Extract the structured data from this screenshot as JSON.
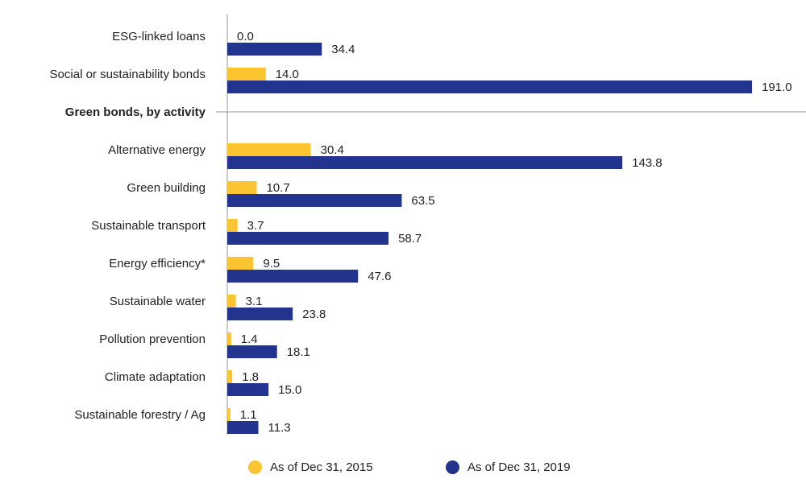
{
  "chart_data": {
    "type": "bar",
    "orientation": "horizontal",
    "categories": [
      "ESG-linked loans",
      "Social or sustainability bonds",
      "Green bonds, by activity",
      "Alternative energy",
      "Green building",
      "Sustainable transport",
      "Energy efficiency*",
      "Sustainable water",
      "Pollution prevention",
      "Climate adaptation",
      "Sustainable forestry / Ag"
    ],
    "section_header": "Green bonds, by activity",
    "series": [
      {
        "name": "As of Dec 31, 2015",
        "color": "#FBC531",
        "values": [
          0.0,
          14.0,
          null,
          30.4,
          10.7,
          3.7,
          9.5,
          3.1,
          1.4,
          1.8,
          1.1
        ],
        "labels": [
          "0.0",
          "14.0",
          "",
          "30.4",
          "10.7",
          "3.7",
          "9.5",
          "3.1",
          "1.4",
          "1.8",
          "1.1"
        ]
      },
      {
        "name": "As of Dec 31, 2019",
        "color": "#22348E",
        "values": [
          34.4,
          191.0,
          null,
          143.8,
          63.5,
          58.7,
          47.6,
          23.8,
          18.1,
          15.0,
          11.3
        ],
        "labels": [
          "34.4",
          "191.0",
          "",
          "143.8",
          "63.5",
          "58.7",
          "47.6",
          "23.8",
          "18.1",
          "15.0",
          "11.3"
        ]
      }
    ],
    "xlim": [
      0,
      191.0
    ],
    "legend_position": "bottom-center",
    "grid": false,
    "title": "",
    "xlabel": "",
    "ylabel": ""
  },
  "legend": {
    "items": [
      {
        "label": "As of Dec 31, 2015",
        "color": "#FBC531"
      },
      {
        "label": "As of Dec 31, 2019",
        "color": "#22348E"
      }
    ]
  }
}
